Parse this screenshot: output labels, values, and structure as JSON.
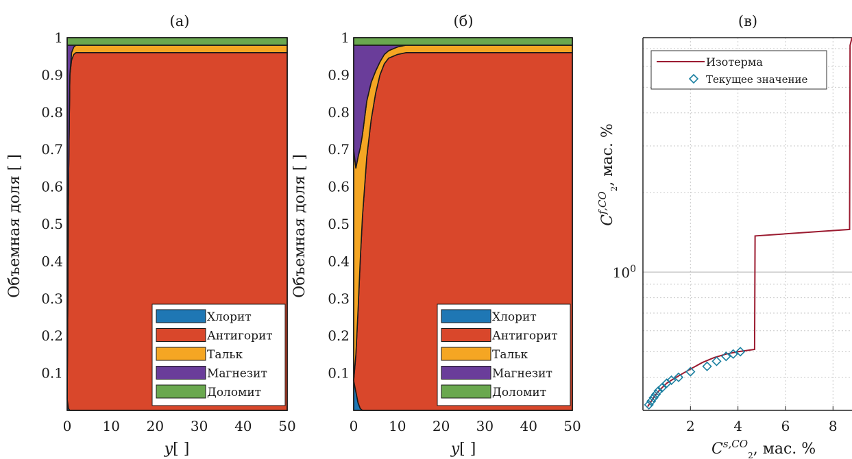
{
  "chart_data": [
    {
      "type": "area",
      "panel_label": "(а)",
      "xlabel_italic": "y",
      "xlabel_unit": "[ ]",
      "ylabel": "Объемная доля [ ]",
      "xlim": [
        0,
        50
      ],
      "ylim": [
        0,
        1
      ],
      "xticks": [
        "0",
        "10",
        "20",
        "30",
        "40",
        "50"
      ],
      "yticks": [
        "0.1",
        "0.2",
        "0.3",
        "0.4",
        "0.5",
        "0.6",
        "0.7",
        "0.8",
        "0.9",
        "1"
      ],
      "grid": false,
      "legend_position": "bottom-right",
      "x": [
        0,
        0.3,
        0.6,
        1.0,
        1.5,
        2.0,
        3.0,
        5.0,
        10,
        20,
        30,
        40,
        50
      ],
      "series": [
        {
          "name": "Хлорит",
          "color": "#1f77b4",
          "values": [
            0.03,
            0.005,
            0,
            0,
            0,
            0,
            0,
            0,
            0,
            0,
            0,
            0,
            0
          ]
        },
        {
          "name": "Антигорит",
          "color": "#d9472b",
          "values": [
            0,
            0.6,
            0.9,
            0.94,
            0.955,
            0.96,
            0.96,
            0.96,
            0.96,
            0.96,
            0.96,
            0.96,
            0.96
          ]
        },
        {
          "name": "Тальк",
          "color": "#f5a623",
          "values": [
            0,
            0,
            0,
            0.02,
            0.02,
            0.02,
            0.02,
            0.02,
            0.02,
            0.02,
            0.02,
            0.02,
            0.02
          ]
        },
        {
          "name": "Магнезит",
          "color": "#6a3d9a",
          "values": [
            0.95,
            0.375,
            0.08,
            0.02,
            0.005,
            0,
            0,
            0,
            0,
            0,
            0,
            0,
            0
          ]
        },
        {
          "name": "Доломит",
          "color": "#6aa84f",
          "values": [
            0.02,
            0.02,
            0.02,
            0.02,
            0.02,
            0.02,
            0.02,
            0.02,
            0.02,
            0.02,
            0.02,
            0.02,
            0.02
          ]
        }
      ]
    },
    {
      "type": "area",
      "panel_label": "(б)",
      "xlabel_italic": "y",
      "xlabel_unit": "[ ]",
      "ylabel": "Объемная доля [ ]",
      "xlim": [
        0,
        50
      ],
      "ylim": [
        0,
        1
      ],
      "xticks": [
        "0",
        "10",
        "20",
        "30",
        "40",
        "50"
      ],
      "yticks": [
        "0.1",
        "0.2",
        "0.3",
        "0.4",
        "0.5",
        "0.6",
        "0.7",
        "0.8",
        "0.9",
        "1"
      ],
      "grid": false,
      "legend_position": "bottom-right",
      "x": [
        0,
        0.5,
        1,
        1.5,
        2,
        3,
        4,
        5,
        6,
        7,
        8,
        10,
        12,
        20,
        50
      ],
      "series": [
        {
          "name": "Хлорит",
          "color": "#1f77b4",
          "values": [
            0.08,
            0.05,
            0.02,
            0.005,
            0,
            0,
            0,
            0,
            0,
            0,
            0,
            0,
            0,
            0,
            0
          ]
        },
        {
          "name": "Антигорит",
          "color": "#d9472b",
          "values": [
            0,
            0.1,
            0.25,
            0.4,
            0.52,
            0.68,
            0.78,
            0.85,
            0.9,
            0.93,
            0.945,
            0.955,
            0.96,
            0.96,
            0.96
          ]
        },
        {
          "name": "Тальк",
          "color": "#f5a623",
          "values": [
            0.62,
            0.5,
            0.41,
            0.3,
            0.22,
            0.15,
            0.1,
            0.06,
            0.035,
            0.025,
            0.02,
            0.02,
            0.02,
            0.02,
            0.02
          ]
        },
        {
          "name": "Магнезит",
          "color": "#6a3d9a",
          "values": [
            0.28,
            0.33,
            0.3,
            0.275,
            0.24,
            0.15,
            0.1,
            0.07,
            0.045,
            0.025,
            0.015,
            0.005,
            0,
            0,
            0
          ]
        },
        {
          "name": "Доломит",
          "color": "#6aa84f",
          "values": [
            0.02,
            0.02,
            0.02,
            0.02,
            0.02,
            0.02,
            0.02,
            0.02,
            0.02,
            0.02,
            0.02,
            0.02,
            0.02,
            0.02,
            0.02
          ]
        }
      ]
    },
    {
      "type": "line",
      "panel_label": "(в)",
      "xlabel": "C",
      "xlabel_sup": "s,CO",
      "xlabel_sub": "2",
      "xlabel_unit": ", мас. %",
      "ylabel": "C",
      "ylabel_sup": "f,CO",
      "ylabel_sub": "2",
      "ylabel_unit": ", мас. %",
      "yscale": "log",
      "xlim": [
        0,
        8.8
      ],
      "ylim": [
        0.3,
        7.7
      ],
      "xticks": [
        "2",
        "4",
        "6",
        "8"
      ],
      "ytick_base": "10",
      "ytick_exp": "0",
      "grid": true,
      "legend_position": "top-left",
      "series": [
        {
          "name": "Изотерма",
          "color": "#9b1b30",
          "style": "line",
          "x": [
            0.2,
            0.25,
            0.3,
            0.4,
            0.5,
            0.6,
            0.8,
            1.0,
            1.2,
            1.5,
            2.0,
            2.5,
            3.0,
            3.5,
            4.0,
            4.7,
            4.72,
            8.7,
            8.72,
            8.8
          ],
          "y": [
            0.31,
            0.315,
            0.32,
            0.33,
            0.34,
            0.35,
            0.365,
            0.38,
            0.39,
            0.405,
            0.43,
            0.455,
            0.475,
            0.49,
            0.5,
            0.51,
            1.37,
            1.45,
            7.2,
            7.7
          ]
        },
        {
          "name": "Текущее значение",
          "color": "#1a7fa0",
          "style": "diamond",
          "x": [
            0.25,
            0.35,
            0.45,
            0.55,
            0.65,
            0.8,
            1.0,
            1.2,
            1.5,
            2.0,
            2.7,
            3.1,
            3.5,
            3.8,
            4.1
          ],
          "y": [
            0.315,
            0.325,
            0.335,
            0.345,
            0.355,
            0.365,
            0.38,
            0.39,
            0.4,
            0.42,
            0.44,
            0.46,
            0.48,
            0.49,
            0.5
          ]
        }
      ]
    }
  ]
}
